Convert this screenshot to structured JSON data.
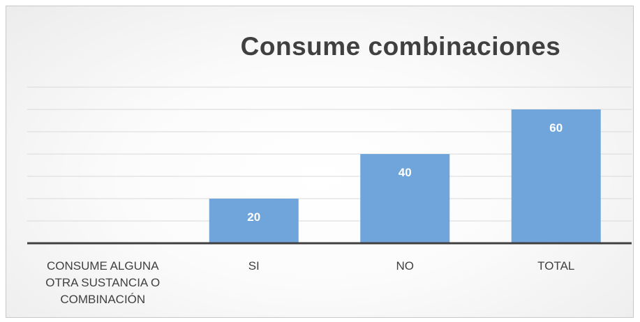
{
  "chart_data": {
    "type": "bar",
    "title": "Consume combinaciones",
    "xlabel": "",
    "ylabel": "",
    "categories": [
      "CONSUME ALGUNA OTRA SUSTANCIA O COMBINACIÓN",
      "SI",
      "NO",
      "TOTAL"
    ],
    "category_lines": [
      [
        "CONSUME ALGUNA",
        "OTRA SUSTANCIA O",
        "COMBINACIÓN"
      ],
      [
        "SI"
      ],
      [
        "NO"
      ],
      [
        "TOTAL"
      ]
    ],
    "values": [
      null,
      20,
      40,
      60
    ],
    "data_labels": [
      "",
      "20",
      "40",
      "60"
    ],
    "ylim": [
      0,
      70
    ],
    "gridline_step": 10,
    "grid": true,
    "legend": "none",
    "colors": {
      "bar": "#6FA5DB",
      "grid": "#d9d9d9",
      "axis": "#404040",
      "text": "#404040"
    }
  }
}
